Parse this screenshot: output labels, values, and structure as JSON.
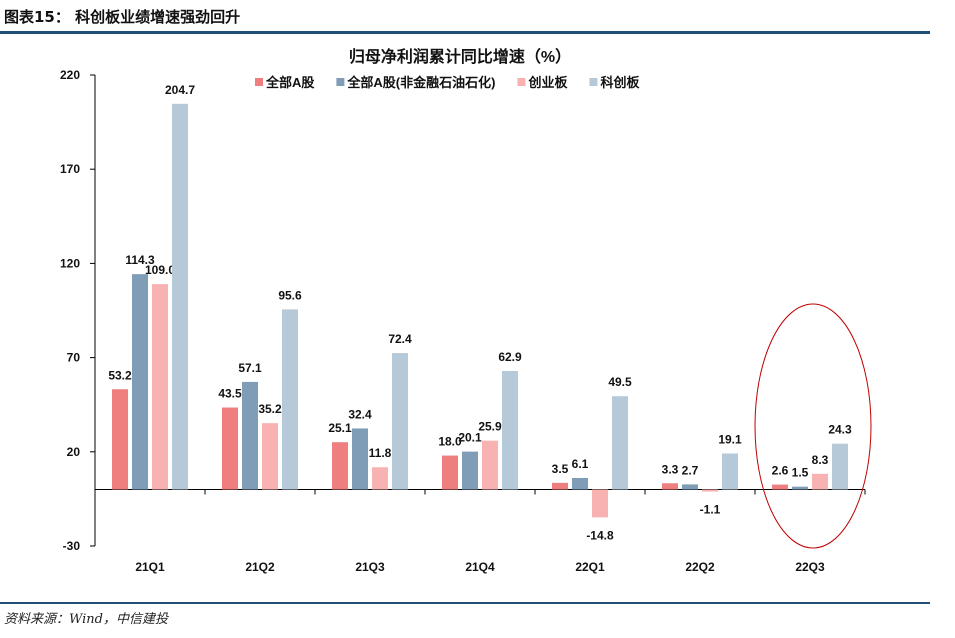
{
  "figure_title": "图表15：  科创板业绩增速强劲回升",
  "source": "资料来源：Wind，中信建投",
  "chart_data": {
    "type": "bar",
    "title": "归母净利润累计同比增速（%）",
    "categories": [
      "21Q1",
      "21Q2",
      "21Q3",
      "21Q4",
      "22Q1",
      "22Q2",
      "22Q3"
    ],
    "series": [
      {
        "name": "全部A股",
        "color": "#ef7e7e",
        "values": [
          53.2,
          43.5,
          25.1,
          18.0,
          3.5,
          3.3,
          2.6
        ]
      },
      {
        "name": "全部A股(非金融石油石化)",
        "color": "#7f9db6",
        "values": [
          114.3,
          57.1,
          32.4,
          20.1,
          6.1,
          2.7,
          1.5
        ]
      },
      {
        "name": "创业板",
        "color": "#f8b2b2",
        "values": [
          109.0,
          35.2,
          11.8,
          25.9,
          -14.8,
          -1.1,
          8.3
        ]
      },
      {
        "name": "科创板",
        "color": "#b6c9d9",
        "values": [
          204.7,
          95.6,
          72.4,
          62.9,
          49.5,
          19.1,
          24.3
        ]
      }
    ],
    "yticks": [
      220,
      170,
      120,
      70,
      20,
      -30
    ],
    "ylim": [
      -30,
      220
    ],
    "legend": "top",
    "grid": false,
    "highlight": {
      "category": "22Q3",
      "shape": "ellipse",
      "color": "#c00000"
    }
  }
}
